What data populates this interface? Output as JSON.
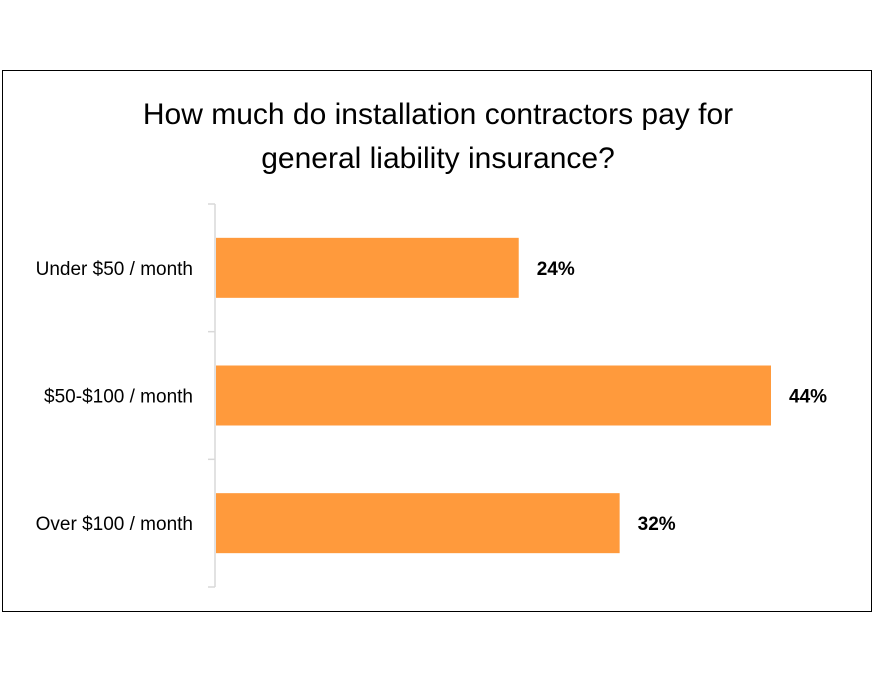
{
  "chart_data": {
    "type": "bar",
    "orientation": "horizontal",
    "title_lines": [
      "How much do installation contractors pay for",
      "general liability insurance?"
    ],
    "categories": [
      "Under $50 / month",
      "$50-$100 / month",
      "Over $100 / month"
    ],
    "values": [
      24,
      44,
      32
    ],
    "data_labels": [
      "24%",
      "44%",
      "32%"
    ],
    "unit": "%",
    "xlim": [
      0,
      44
    ],
    "bar_color": "#FF9A3C",
    "axis_color": "#D9D9D9",
    "grid": false,
    "legend": "none"
  }
}
